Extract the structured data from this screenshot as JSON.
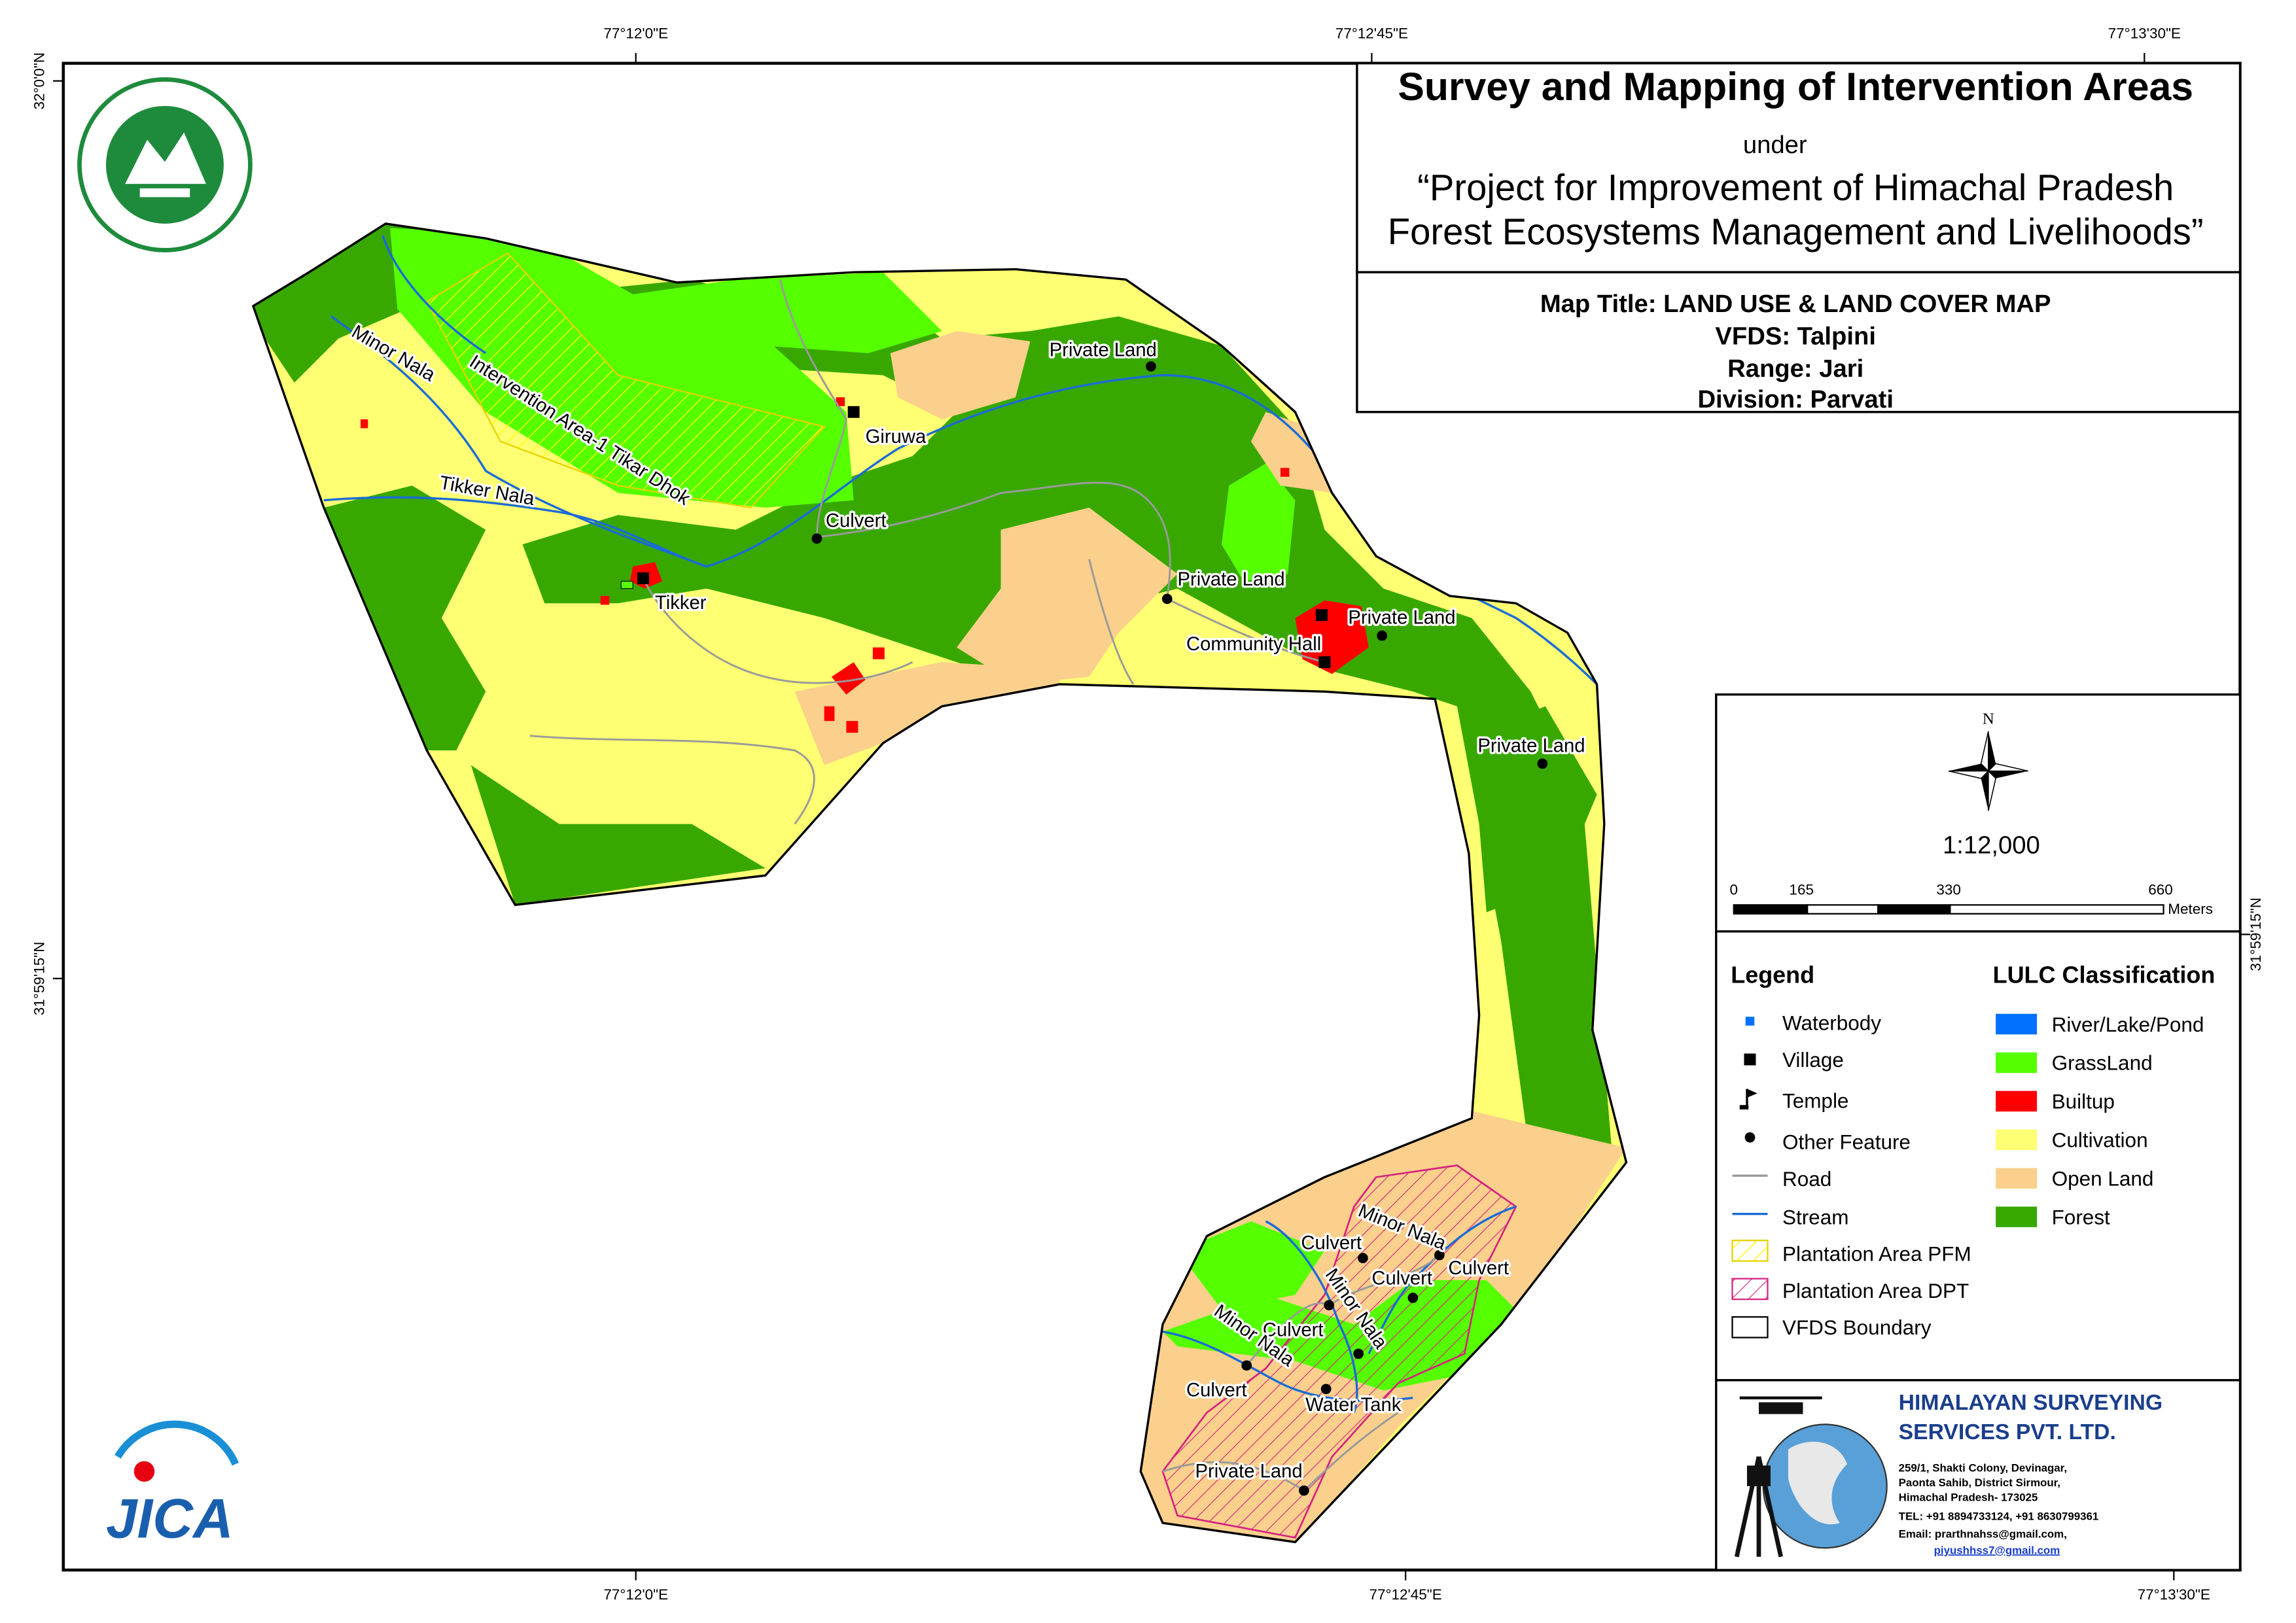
{
  "grid_labels": {
    "top": [
      "77°12'0\"E",
      "77°12'45\"E",
      "77°13'30\"E"
    ],
    "bottom": [
      "77°12'0\"E",
      "77°12'45\"E",
      "77°13'30\"E"
    ],
    "left": [
      "32°0'0\"N",
      "31°59'15\"N"
    ],
    "right": [
      "31°59'15\"N"
    ]
  },
  "header": {
    "title": "Survey and Mapping of Intervention Areas",
    "under": "under",
    "project": [
      "“Project for Improvement of Himachal Pradesh",
      "Forest Ecosystems Management and Livelihoods”"
    ]
  },
  "map_info": [
    "Map Title: LAND USE & LAND COVER MAP",
    "VFDS: Talpini",
    "Range: Jari",
    "Division: Parvati"
  ],
  "north": "N",
  "scale": {
    "ratio": "1:12,000",
    "ticks": [
      0,
      165,
      330,
      660
    ],
    "unit": "Meters"
  },
  "legend": {
    "title": "Legend",
    "items": [
      "Waterbody",
      "Village",
      "Temple",
      "Other Feature",
      "Road",
      "Stream",
      "Plantation Area PFM",
      "Plantation Area DPT",
      "VFDS Boundary"
    ]
  },
  "lulc": {
    "title": "LULC Classification",
    "items": [
      {
        "name": "River/Lake/Pond",
        "color": "#0070ff"
      },
      {
        "name": "GrassLand",
        "color": "#55ff00"
      },
      {
        "name": "Builtup",
        "color": "#ff0000"
      },
      {
        "name": "Cultivation",
        "color": "#ffff73"
      },
      {
        "name": "Open Land",
        "color": "#fad08c"
      },
      {
        "name": "Forest",
        "color": "#38a800"
      }
    ]
  },
  "map_labels": [
    "Minor Nala",
    "Intervention Area-1 Tikar Dhok",
    "Tikker Nala",
    "Giruwa",
    "Culvert",
    "Tikker",
    "Private Land",
    "Private Land",
    "Community Hall",
    "Private Land",
    "Private Land",
    "Minor Nala",
    "Culvert",
    "Culvert",
    "Culvert",
    "Minor Nala",
    "Culvert",
    "Minor Nala",
    "Culvert",
    "Water Tank",
    "Private Land"
  ],
  "logos": {
    "jica": "JICA"
  },
  "company": {
    "name": [
      "HIMALAYAN SURVEYING",
      "SERVICES PVT. LTD."
    ],
    "address": [
      "259/1, Shakti Colony, Devinagar,",
      "Paonta Sahib, District Sirmour,",
      "Himachal Pradesh- 173025",
      "TEL: +91 8894733124, +91 8630799361",
      "Email: prarthnahss@gmail.com,",
      "piyushhss7@gmail.com"
    ]
  }
}
